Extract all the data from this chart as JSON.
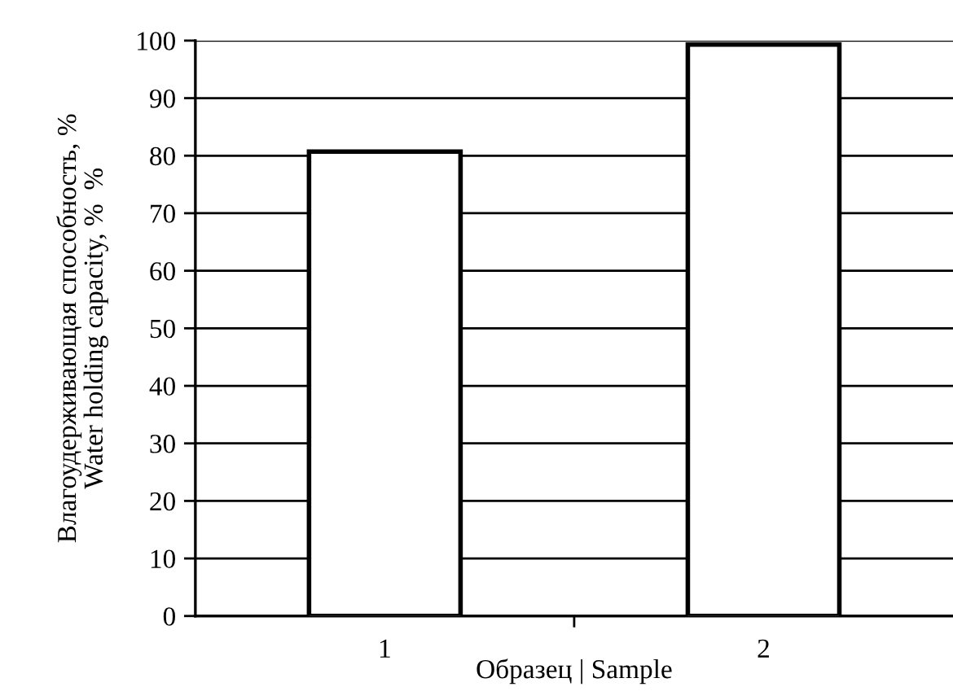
{
  "chart_data": {
    "type": "bar",
    "xlabel": "Образец | Sample",
    "ylabel": "Влагоудерживающая способность, %\nWater holding capacity, %  %",
    "categories": [
      "1",
      "2"
    ],
    "values": [
      80.7,
      99.3
    ],
    "color": "#ffffff",
    "ylim": [
      0,
      100
    ],
    "yticks": [
      0,
      10,
      20,
      30,
      40,
      50,
      60,
      70,
      80,
      90,
      100
    ],
    "grid": "y",
    "legend": false
  }
}
